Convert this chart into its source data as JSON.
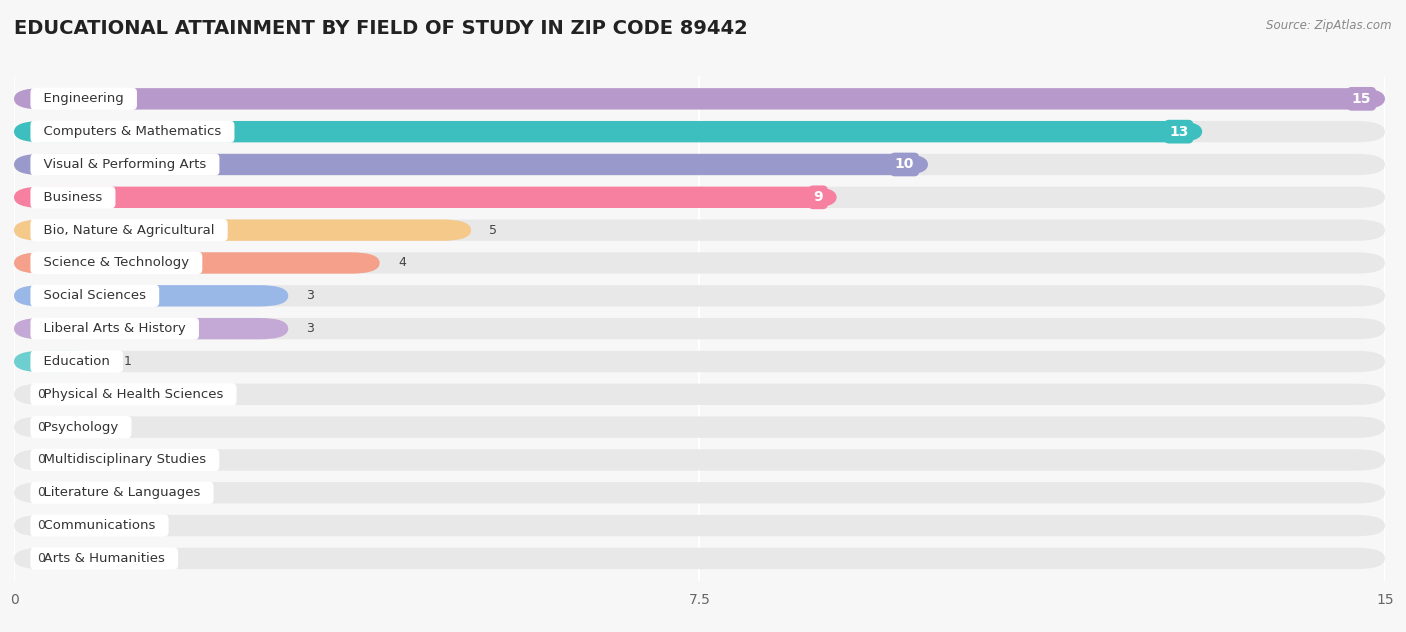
{
  "title": "EDUCATIONAL ATTAINMENT BY FIELD OF STUDY IN ZIP CODE 89442",
  "source": "Source: ZipAtlas.com",
  "categories": [
    "Engineering",
    "Computers & Mathematics",
    "Visual & Performing Arts",
    "Business",
    "Bio, Nature & Agricultural",
    "Science & Technology",
    "Social Sciences",
    "Liberal Arts & History",
    "Education",
    "Physical & Health Sciences",
    "Psychology",
    "Multidisciplinary Studies",
    "Literature & Languages",
    "Communications",
    "Arts & Humanities"
  ],
  "values": [
    15,
    13,
    10,
    9,
    5,
    4,
    3,
    3,
    1,
    0,
    0,
    0,
    0,
    0,
    0
  ],
  "colors": [
    "#b899cc",
    "#3dbfbf",
    "#9999cc",
    "#f77fa0",
    "#f5c98a",
    "#f5a08a",
    "#99b8e8",
    "#c4a8d5",
    "#6dcfcf",
    "#a8bce8",
    "#f9a8c0",
    "#f5c98a",
    "#f5a090",
    "#a8c4e8",
    "#c4b8e0"
  ],
  "xlim": [
    0,
    15
  ],
  "xticks": [
    0,
    7.5,
    15
  ],
  "background_color": "#f7f7f7",
  "bar_bg_color": "#e8e8e8",
  "title_fontsize": 14,
  "label_fontsize": 9.5,
  "value_fontsize": 9
}
